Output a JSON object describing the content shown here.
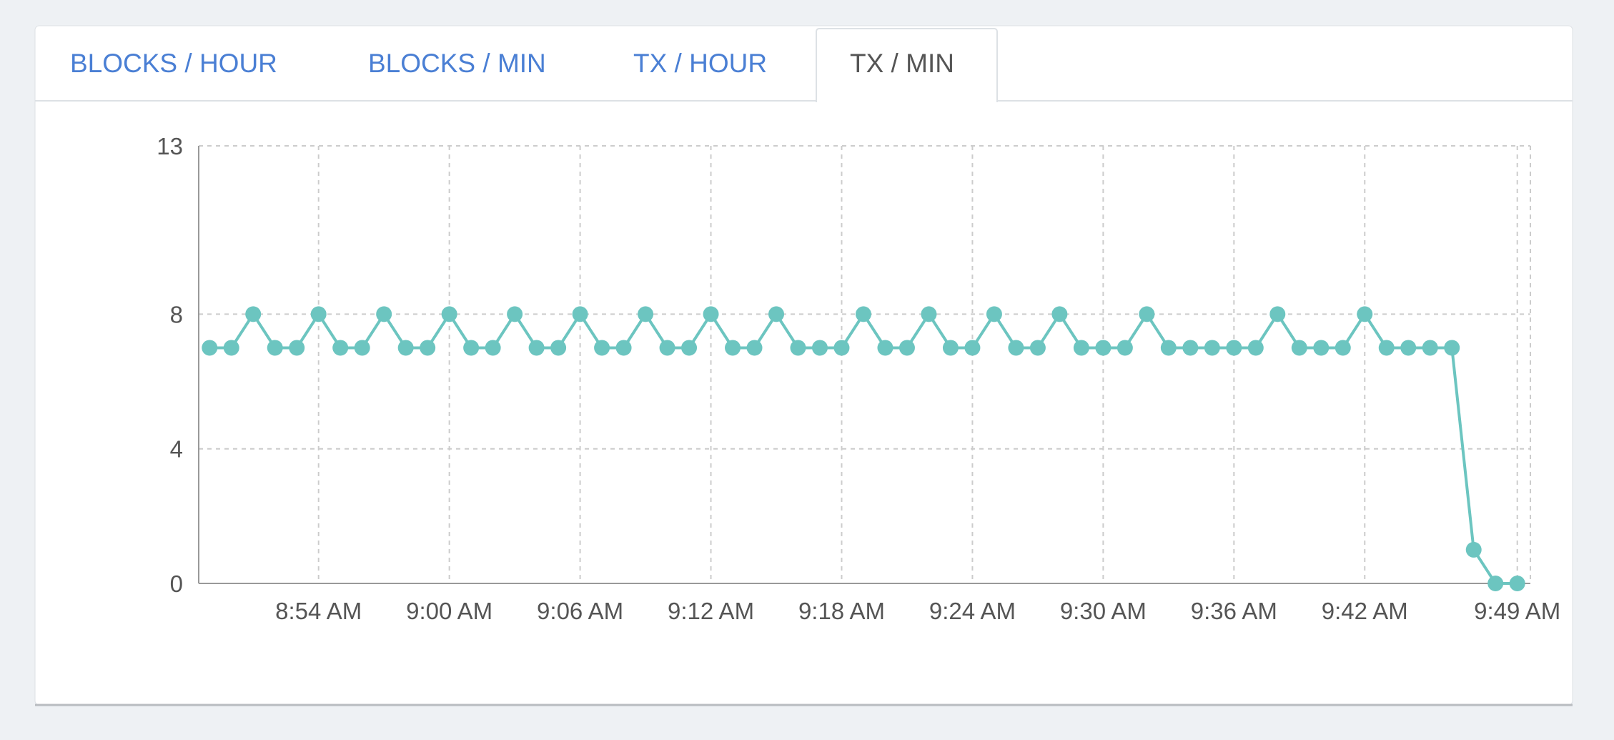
{
  "tabs": [
    {
      "label": "BLOCKS / HOUR",
      "active": false
    },
    {
      "label": "BLOCKS / MIN",
      "active": false
    },
    {
      "label": "TX / HOUR",
      "active": false
    },
    {
      "label": "TX / MIN",
      "active": true
    }
  ],
  "chart_data": {
    "type": "line",
    "color": "#6cc5c0",
    "grid": true,
    "x": [
      529,
      530,
      531,
      532,
      533,
      534,
      535,
      536,
      537,
      538,
      539,
      540,
      541,
      542,
      543,
      544,
      545,
      546,
      547,
      548,
      549,
      550,
      551,
      552,
      553,
      554,
      555,
      556,
      557,
      558,
      559,
      560,
      561,
      562,
      563,
      564,
      565,
      566,
      567,
      568,
      569,
      570,
      571,
      572,
      573,
      574,
      575,
      576,
      577,
      578,
      579,
      580,
      581,
      582,
      583,
      584,
      585,
      586,
      587,
      588,
      589
    ],
    "values": [
      7,
      7,
      8,
      7,
      7,
      8,
      7,
      7,
      8,
      7,
      7,
      8,
      7,
      7,
      8,
      7,
      7,
      8,
      7,
      7,
      8,
      7,
      7,
      8,
      7,
      7,
      8,
      7,
      7,
      7,
      8,
      7,
      7,
      8,
      7,
      7,
      8,
      7,
      7,
      8,
      7,
      7,
      7,
      8,
      7,
      7,
      7,
      7,
      7,
      8,
      7,
      7,
      7,
      8,
      7,
      7,
      7,
      7,
      1,
      0,
      0
    ],
    "xlim": [
      528.5,
      589.6
    ],
    "xticks": [
      {
        "value": 534,
        "label": "8:54 AM"
      },
      {
        "value": 540,
        "label": "9:00 AM"
      },
      {
        "value": 546,
        "label": "9:06 AM"
      },
      {
        "value": 552,
        "label": "9:12 AM"
      },
      {
        "value": 558,
        "label": "9:18 AM"
      },
      {
        "value": 564,
        "label": "9:24 AM"
      },
      {
        "value": 570,
        "label": "9:30 AM"
      },
      {
        "value": 576,
        "label": "9:36 AM"
      },
      {
        "value": 582,
        "label": "9:42 AM"
      },
      {
        "value": 589,
        "label": "9:49 AM"
      }
    ],
    "ylim": [
      0,
      13
    ],
    "yticks": [
      0,
      4,
      8,
      13
    ]
  }
}
